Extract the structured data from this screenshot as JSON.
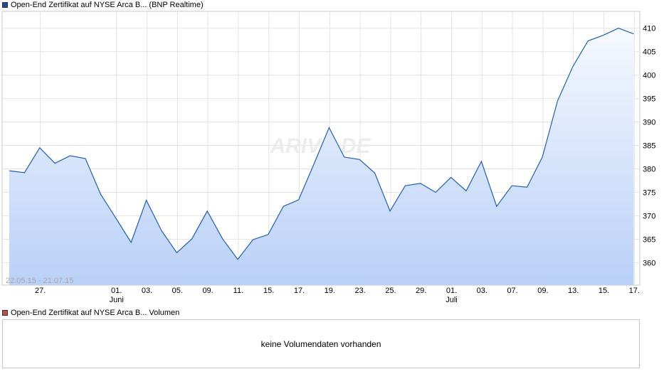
{
  "price_chart": {
    "legend_label": "Open-End Zertifikat auf NYSE Arca B... (BNP Realtime)",
    "legend_color": "#1f4e9c",
    "date_range": "22.05.15 - 21.07.15",
    "watermark": "ARIVA.DE"
  },
  "volume_chart": {
    "legend_label": "Open-End Zertifikat auf NYSE Arca B... Volumen",
    "legend_color": "#c0504d",
    "message": "keine Volumendaten vorhanden"
  },
  "chart_data": {
    "type": "area",
    "y_ticks": [
      410,
      405,
      400,
      395,
      390,
      385,
      380,
      375,
      370,
      365,
      360
    ],
    "ylim": [
      355.2,
      413.6
    ],
    "x_labels": [
      {
        "day": "27.",
        "month": ""
      },
      {
        "day": "01.",
        "month": "Juni"
      },
      {
        "day": "03.",
        "month": ""
      },
      {
        "day": "05.",
        "month": ""
      },
      {
        "day": "09.",
        "month": ""
      },
      {
        "day": "11.",
        "month": ""
      },
      {
        "day": "15.",
        "month": ""
      },
      {
        "day": "17.",
        "month": ""
      },
      {
        "day": "19.",
        "month": ""
      },
      {
        "day": "23.",
        "month": ""
      },
      {
        "day": "25.",
        "month": ""
      },
      {
        "day": "29.",
        "month": ""
      },
      {
        "day": "01.",
        "month": "Juli"
      },
      {
        "day": "03.",
        "month": ""
      },
      {
        "day": "07.",
        "month": ""
      },
      {
        "day": "09.",
        "month": ""
      },
      {
        "day": "13.",
        "month": ""
      },
      {
        "day": "15.",
        "month": ""
      },
      {
        "day": "17.",
        "month": ""
      }
    ],
    "x_label_index": [
      2,
      7,
      9,
      11,
      13,
      15,
      17,
      19,
      21,
      23,
      25,
      27,
      29,
      31,
      33,
      35,
      37,
      39,
      41
    ],
    "values": [
      379.6,
      379.2,
      384.5,
      381.2,
      382.8,
      382.2,
      374.6,
      369.5,
      364.3,
      373.3,
      366.8,
      362.1,
      365.1,
      371.0,
      365.1,
      360.7,
      364.9,
      366.0,
      372.0,
      373.4,
      381.0,
      388.8,
      382.5,
      382.0,
      379.1,
      371.0,
      376.4,
      376.9,
      375.0,
      378.2,
      375.3,
      381.6,
      372.0,
      376.4,
      376.1,
      382.5,
      394.5,
      401.8,
      407.3,
      408.5,
      410.0,
      408.8
    ],
    "line_color": "#1f5fb5",
    "fill_top_color": "#f6f9ff",
    "fill_bottom_color": "#b9d0f7",
    "grid": true
  }
}
